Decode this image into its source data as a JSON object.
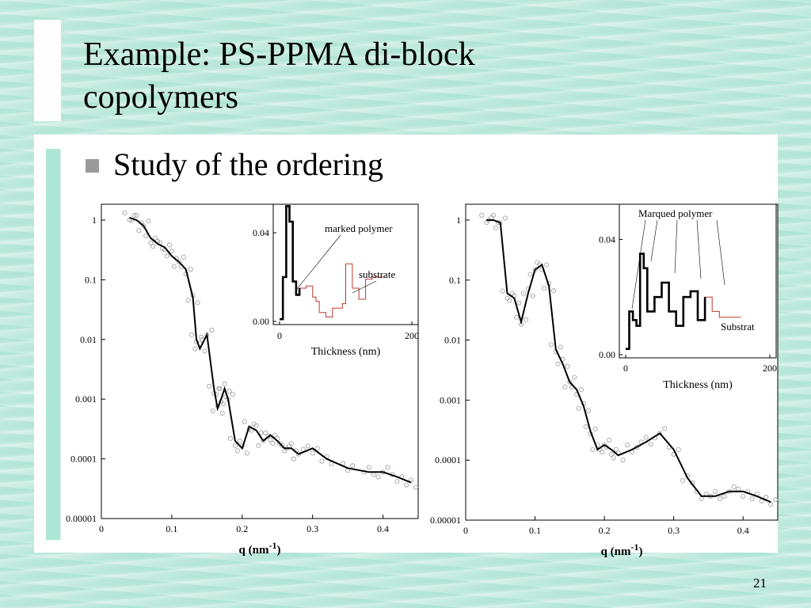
{
  "slide": {
    "title": "Example: PS-PPMA di-block copolymers",
    "bullet": "Study of the ordering",
    "page_number": "21"
  },
  "chart_data": [
    {
      "type": "line",
      "yscale": "log",
      "x": [
        0.04,
        0.05,
        0.06,
        0.07,
        0.08,
        0.09,
        0.1,
        0.11,
        0.12,
        0.13,
        0.135,
        0.14,
        0.15,
        0.16,
        0.165,
        0.17,
        0.175,
        0.18,
        0.19,
        0.2,
        0.21,
        0.22,
        0.23,
        0.24,
        0.25,
        0.26,
        0.27,
        0.28,
        0.3,
        0.32,
        0.35,
        0.38,
        0.4,
        0.42,
        0.44
      ],
      "series": [
        {
          "values": [
            1.1,
            1.0,
            0.8,
            0.5,
            0.4,
            0.35,
            0.25,
            0.2,
            0.15,
            0.05,
            0.01,
            0.007,
            0.012,
            0.0015,
            0.0007,
            0.001,
            0.0015,
            0.001,
            0.0002,
            0.00015,
            0.00035,
            0.0003,
            0.0002,
            0.00025,
            0.0002,
            0.00015,
            0.00015,
            0.00012,
            0.00015,
            0.0001,
            7e-05,
            6e-05,
            6e-05,
            5e-05,
            4e-05
          ]
        }
      ],
      "xlabel": "q (nm",
      "xlabel_sup": "-1",
      "xlabel_close": ")",
      "xlim": [
        0,
        0.45
      ],
      "ylim": [
        1e-05,
        1
      ],
      "xticks": [
        "0",
        "0.1",
        "0.2",
        "0.3",
        "0.4"
      ],
      "yticks": [
        "1",
        "0.1",
        "0.01",
        "0.001",
        "0.0001",
        "0.00001"
      ],
      "inset": {
        "x": [
          0,
          5,
          10,
          15,
          20,
          25,
          30,
          40,
          50,
          55,
          60,
          70,
          80,
          90,
          95,
          100,
          110,
          120,
          130,
          140,
          160
        ],
        "values": [
          0.001,
          0.02,
          0.052,
          0.045,
          0.018,
          0.012,
          0.015,
          0.016,
          0.011,
          0.009,
          0.004,
          0.002,
          0.006,
          0.006,
          0.008,
          0.026,
          0.015,
          0.01,
          0.019,
          0.02,
          0.02
        ],
        "xlabel": "Thickness (nm)",
        "xticks": [
          "0",
          "200"
        ],
        "yticks": [
          "0.00",
          "0.04"
        ],
        "annotations": [
          "marked polymer",
          "substrate"
        ]
      }
    },
    {
      "type": "line",
      "yscale": "log",
      "x": [
        0.03,
        0.04,
        0.05,
        0.06,
        0.07,
        0.08,
        0.09,
        0.1,
        0.11,
        0.12,
        0.13,
        0.14,
        0.15,
        0.16,
        0.17,
        0.18,
        0.19,
        0.2,
        0.21,
        0.22,
        0.24,
        0.26,
        0.28,
        0.3,
        0.32,
        0.34,
        0.36,
        0.38,
        0.4,
        0.42,
        0.44
      ],
      "series": [
        {
          "values": [
            1.0,
            1.0,
            0.9,
            0.06,
            0.05,
            0.02,
            0.06,
            0.15,
            0.18,
            0.08,
            0.007,
            0.004,
            0.002,
            0.0015,
            0.0008,
            0.0003,
            0.00015,
            0.00018,
            0.00015,
            0.00012,
            0.00015,
            0.0002,
            0.00028,
            0.00015,
            5e-05,
            2.5e-05,
            2.5e-05,
            3e-05,
            3e-05,
            2.5e-05,
            2e-05
          ]
        }
      ],
      "xlabel": "q (nm",
      "xlabel_sup": "-1",
      "xlabel_close": ")",
      "xlim": [
        0,
        0.45
      ],
      "ylim": [
        1e-05,
        1
      ],
      "xticks": [
        "0",
        "0.1",
        "0.2",
        "0.3",
        "0.4"
      ],
      "yticks": [
        "1",
        "0.1",
        "0.01",
        "0.001",
        "0.0001",
        "0.00001"
      ],
      "inset": {
        "x": [
          0,
          5,
          10,
          15,
          20,
          25,
          30,
          40,
          50,
          60,
          70,
          80,
          90,
          100,
          110,
          120,
          130,
          140,
          160
        ],
        "values": [
          0.002,
          0.015,
          0.012,
          0.01,
          0.035,
          0.03,
          0.015,
          0.02,
          0.025,
          0.015,
          0.01,
          0.02,
          0.022,
          0.012,
          0.02,
          0.015,
          0.013,
          0.013,
          0.013
        ],
        "xlabel": "Thickness (nm)",
        "xticks": [
          "0",
          "200"
        ],
        "yticks": [
          "0.00",
          "0.04"
        ],
        "annotations": [
          "Marqued polymer",
          "Substrat"
        ]
      }
    }
  ]
}
